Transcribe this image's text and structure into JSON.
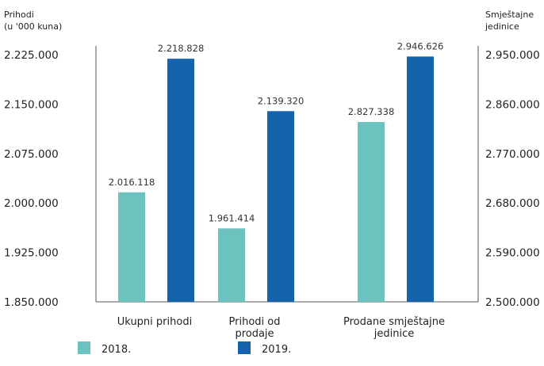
{
  "chart_data": {
    "type": "bar",
    "left_axis": {
      "title_lines": [
        "Prihodi",
        "(u '000 kuna)"
      ],
      "range": [
        1850000,
        2225000
      ],
      "ticks": [
        "1.850.000",
        "1.925.000",
        "2.000.000",
        "2.075.000",
        "2.150.000",
        "2.225.000"
      ],
      "tick_values": [
        1850000,
        1925000,
        2000000,
        2075000,
        2150000,
        2225000
      ]
    },
    "right_axis": {
      "title_lines": [
        "Smještajne",
        "jedinice"
      ],
      "range": [
        2500000,
        2950000
      ],
      "ticks": [
        "2.500.000",
        "2.590.000",
        "2.680.000",
        "2.770.000",
        "2.860.000",
        "2.950.000"
      ],
      "tick_values": [
        2500000,
        2590000,
        2680000,
        2770000,
        2860000,
        2950000
      ]
    },
    "categories": [
      {
        "label_lines": [
          "Ukupni prihodi"
        ],
        "axis": "left"
      },
      {
        "label_lines": [
          "Prihodi od",
          "prodaje"
        ],
        "axis": "left"
      },
      {
        "label_lines": [
          "Prodane smještajne",
          "jedinice"
        ],
        "axis": "right"
      }
    ],
    "series": [
      {
        "name": "2018.",
        "color": "#6bc2bf",
        "values": [
          2016118,
          1961414,
          2827338
        ],
        "labels": [
          "2.016.118",
          "1.961.414",
          "2.827.338"
        ]
      },
      {
        "name": "2019.",
        "color": "#1563ad",
        "values": [
          2218828,
          2139320,
          2946626
        ],
        "labels": [
          "2.218.828",
          "2.139.320",
          "2.946.626"
        ]
      }
    ],
    "grid": false,
    "legend_position": "bottom-left"
  }
}
